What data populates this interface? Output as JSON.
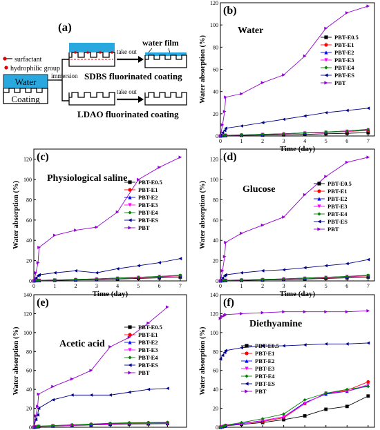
{
  "figure": {
    "series_names": [
      "PBT-E0.5",
      "PBT-E1",
      "PBT-E2",
      "PBT-E3",
      "PBT-E4",
      "PBT-ES",
      "PBT"
    ],
    "series_colors": [
      "#000000",
      "#ff0000",
      "#0000ff",
      "#ff00ff",
      "#008000",
      "#00008b",
      "#9400d3"
    ],
    "series_markers": [
      "square",
      "circle",
      "triangle-up",
      "triangle-down",
      "diamond",
      "triangle-left",
      "triangle-right"
    ],
    "x_ticks_main": [
      "0",
      "1",
      "2",
      "3",
      "4",
      "5",
      "6",
      "7"
    ],
    "x_ticks_e": [
      "0",
      "1",
      "2",
      "3",
      "4",
      "5",
      "6",
      "7",
      "8"
    ]
  },
  "diagram": {
    "panel_label": "(a)",
    "legend_surfactant": "surfactant",
    "legend_hydrophilic": "hydrophilic group",
    "water_label": "Water",
    "coating_label": "Coating",
    "immersion_label": "immersion",
    "take_out_top": "take out",
    "take_out_bottom": "take out",
    "water_film_label": "water film",
    "sdbs_label": "SDBS fluorinated coating",
    "ldao_label": "LDAO fluorinated coating"
  },
  "chart_data": [
    {
      "id": "b",
      "type": "line",
      "panel_label": "(b)",
      "title": "Water",
      "xlabel": "Time (day)",
      "ylabel": "Water absorption (%)",
      "xlim": [
        0,
        7.3
      ],
      "ylim": [
        0,
        120
      ],
      "yticks": [
        0,
        20,
        40,
        60,
        80,
        100,
        120
      ],
      "x": [
        0,
        0.1,
        0.2,
        0.25,
        1,
        2,
        3,
        4,
        5,
        6,
        7
      ],
      "series": [
        {
          "name": "PBT-E0.5",
          "values": [
            0,
            0.2,
            0.3,
            0.4,
            0.6,
            0.8,
            1.0,
            1.4,
            2.0,
            2.4,
            3.0
          ]
        },
        {
          "name": "PBT-E1",
          "values": [
            0,
            0.3,
            0.4,
            0.6,
            0.9,
            1.3,
            1.8,
            2.6,
            3.2,
            4.0,
            5.0
          ]
        },
        {
          "name": "PBT-E2",
          "values": [
            0,
            0.3,
            0.4,
            0.6,
            0.9,
            1.4,
            2.0,
            2.8,
            3.5,
            4.5,
            6.0
          ]
        },
        {
          "name": "PBT-E3",
          "values": [
            0,
            0.3,
            0.4,
            0.5,
            0.8,
            1.3,
            1.8,
            2.6,
            3.3,
            4.2,
            5.5
          ]
        },
        {
          "name": "PBT-E4",
          "values": [
            0,
            0.3,
            0.5,
            0.6,
            1.0,
            1.5,
            2.0,
            2.8,
            3.6,
            4.5,
            5.8
          ]
        },
        {
          "name": "PBT-ES",
          "values": [
            0,
            3,
            5,
            7,
            9,
            12,
            15,
            18,
            21,
            23,
            25
          ]
        },
        {
          "name": "PBT",
          "values": [
            0,
            10,
            22,
            35,
            38,
            48,
            55,
            72,
            97,
            111,
            117
          ]
        }
      ]
    },
    {
      "id": "c",
      "type": "line",
      "panel_label": "(c)",
      "title": "Physiological saline",
      "xlabel": "Time (day)",
      "ylabel": "Water absorption (%)",
      "xlim": [
        0,
        7.3
      ],
      "ylim": [
        0,
        130
      ],
      "yticks": [
        0,
        20,
        40,
        60,
        80,
        100,
        120
      ],
      "x": [
        0,
        0.1,
        0.2,
        0.25,
        1,
        2,
        3,
        4,
        5,
        6,
        7
      ],
      "series": [
        {
          "name": "PBT-E0.5",
          "values": [
            0,
            0.2,
            0.3,
            0.4,
            0.6,
            0.9,
            1.2,
            1.8,
            2.4,
            3.0,
            3.8
          ]
        },
        {
          "name": "PBT-E1",
          "values": [
            0,
            0.3,
            0.4,
            0.6,
            0.9,
            1.3,
            1.8,
            2.5,
            3.2,
            4.0,
            5.0
          ]
        },
        {
          "name": "PBT-E2",
          "values": [
            0,
            0.3,
            0.4,
            0.6,
            0.9,
            1.4,
            2.0,
            2.8,
            3.6,
            4.4,
            5.5
          ]
        },
        {
          "name": "PBT-E3",
          "values": [
            0,
            0.3,
            0.4,
            0.5,
            0.8,
            1.3,
            1.8,
            2.6,
            3.4,
            4.2,
            5.2
          ]
        },
        {
          "name": "PBT-E4",
          "values": [
            0,
            0.3,
            0.5,
            0.6,
            1.0,
            1.5,
            2.0,
            2.8,
            3.6,
            4.5,
            5.6
          ]
        },
        {
          "name": "PBT-ES",
          "values": [
            0,
            3,
            5,
            6,
            8,
            10,
            8,
            12,
            15,
            18,
            22
          ]
        },
        {
          "name": "PBT",
          "values": [
            0,
            8,
            18,
            33,
            45,
            50,
            53,
            68,
            100,
            112,
            122
          ]
        }
      ]
    },
    {
      "id": "d",
      "type": "line",
      "panel_label": "(d)",
      "title": "Glucose",
      "xlabel": "Time (day)",
      "ylabel": "Water absorption (%)",
      "xlim": [
        0,
        7.3
      ],
      "ylim": [
        0,
        130
      ],
      "yticks": [
        0,
        20,
        40,
        60,
        80,
        100,
        120
      ],
      "x": [
        0,
        0.1,
        0.2,
        0.25,
        1,
        2,
        3,
        4,
        5,
        6,
        7
      ],
      "series": [
        {
          "name": "PBT-E0.5",
          "values": [
            0,
            0.2,
            0.3,
            0.4,
            0.6,
            0.9,
            1.2,
            1.8,
            2.4,
            3.0,
            3.8
          ]
        },
        {
          "name": "PBT-E1",
          "values": [
            0,
            0.3,
            0.4,
            0.6,
            0.9,
            1.3,
            1.8,
            2.5,
            3.2,
            4.0,
            5.0
          ]
        },
        {
          "name": "PBT-E2",
          "values": [
            0,
            0.3,
            0.4,
            0.6,
            0.9,
            1.4,
            2.0,
            2.8,
            3.6,
            4.4,
            5.5
          ]
        },
        {
          "name": "PBT-E3",
          "values": [
            0,
            0.3,
            0.4,
            0.5,
            0.8,
            1.3,
            1.8,
            2.6,
            3.4,
            4.2,
            5.2
          ]
        },
        {
          "name": "PBT-E4",
          "values": [
            0,
            0.3,
            0.5,
            0.6,
            1.0,
            1.5,
            2.0,
            2.8,
            3.6,
            4.5,
            5.6
          ]
        },
        {
          "name": "PBT-ES",
          "values": [
            0,
            3,
            5,
            6,
            8,
            10,
            11,
            13,
            15,
            17,
            21
          ]
        },
        {
          "name": "PBT",
          "values": [
            0,
            10,
            24,
            38,
            47,
            55,
            63,
            85,
            103,
            117,
            122
          ]
        }
      ]
    },
    {
      "id": "e",
      "type": "line",
      "panel_label": "(e)",
      "title": "Acetic acid",
      "xlabel": "Time (day)",
      "ylabel": "Water absorption (%)",
      "xlim": [
        0,
        8
      ],
      "ylim": [
        0,
        140
      ],
      "yticks": [
        0,
        20,
        40,
        60,
        80,
        100,
        120,
        140
      ],
      "x": [
        0,
        0.1,
        0.2,
        0.25,
        1,
        2,
        3,
        4,
        5,
        6,
        7
      ],
      "series": [
        {
          "name": "PBT-E0.5",
          "values": [
            0,
            0.3,
            0.5,
            0.8,
            1.2,
            1.8,
            2.4,
            3.0,
            3.4,
            3.6,
            3.8
          ]
        },
        {
          "name": "PBT-E1",
          "values": [
            0,
            0.4,
            0.6,
            1.0,
            1.6,
            2.4,
            3.2,
            4.0,
            4.5,
            4.8,
            5.0
          ]
        },
        {
          "name": "PBT-E2",
          "values": [
            0,
            0.4,
            0.7,
            1.0,
            1.5,
            2.2,
            3.0,
            3.6,
            4.0,
            4.2,
            4.4
          ]
        },
        {
          "name": "PBT-E3",
          "values": [
            0,
            0.3,
            0.6,
            0.9,
            1.4,
            2.0,
            2.8,
            3.4,
            3.8,
            4.0,
            4.2
          ]
        },
        {
          "name": "PBT-E4",
          "values": [
            0,
            0.4,
            0.7,
            1.1,
            1.8,
            2.6,
            3.4,
            4.2,
            4.8,
            5.0,
            5.2
          ]
        },
        {
          "name": "PBT-ES",
          "values": [
            0,
            8,
            13,
            20,
            29,
            34,
            34,
            34,
            37,
            40,
            41
          ]
        },
        {
          "name": "PBT",
          "values": [
            0,
            12,
            22,
            35,
            43,
            51,
            60,
            85,
            95,
            110,
            127
          ]
        }
      ]
    },
    {
      "id": "f",
      "type": "line",
      "panel_label": "(f)",
      "title": "Diethyamine",
      "xlabel": "Time (day)",
      "ylabel": "Water absorption (%)",
      "xlim": [
        0,
        7.3
      ],
      "ylim": [
        0,
        140
      ],
      "yticks": [
        0,
        20,
        40,
        60,
        80,
        100,
        120,
        140
      ],
      "x": [
        0,
        0.1,
        0.2,
        0.25,
        1,
        2,
        3,
        4,
        5,
        6,
        7
      ],
      "series": [
        {
          "name": "PBT-E0.5",
          "values": [
            0,
            0.5,
            1.0,
            1.5,
            3,
            5,
            8,
            12,
            19,
            22,
            33
          ]
        },
        {
          "name": "PBT-E1",
          "values": [
            0,
            0.6,
            1.2,
            2.0,
            4,
            6,
            10,
            25,
            36,
            39,
            48
          ]
        },
        {
          "name": "PBT-E2",
          "values": [
            0,
            0.6,
            1.2,
            2.0,
            4,
            7,
            11,
            26,
            35,
            38,
            44
          ]
        },
        {
          "name": "PBT-E3",
          "values": [
            0,
            0.5,
            1.0,
            1.8,
            3.5,
            7,
            11,
            25,
            36,
            38,
            45
          ]
        },
        {
          "name": "PBT-E4",
          "values": [
            0,
            0.7,
            1.4,
            2.2,
            5,
            9,
            14,
            29,
            36,
            40,
            43
          ]
        },
        {
          "name": "PBT-ES",
          "values": [
            72,
            76,
            79,
            81,
            84,
            86,
            86,
            87,
            88,
            88,
            89
          ]
        },
        {
          "name": "PBT",
          "values": [
            115,
            117,
            118,
            119,
            120,
            121,
            122,
            122,
            122,
            122,
            123
          ]
        }
      ]
    }
  ]
}
